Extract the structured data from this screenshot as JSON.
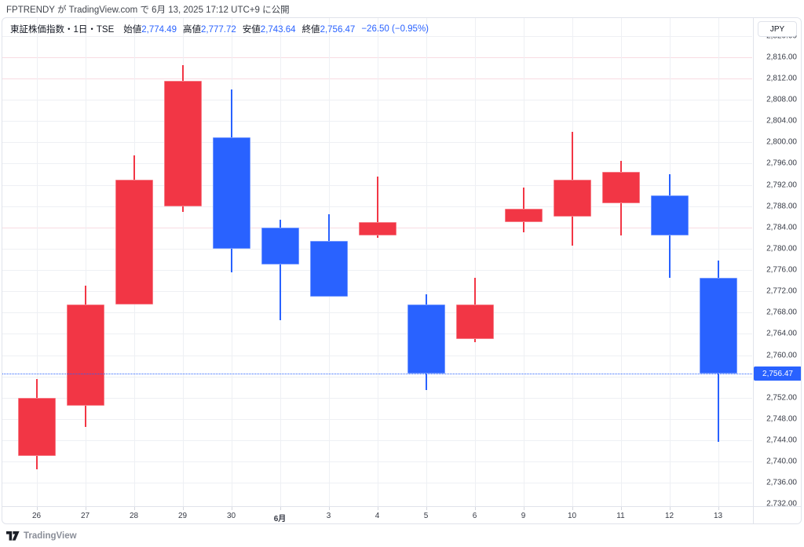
{
  "header": {
    "publish_line": "FPTRENDY が TradingView.com で 6月 13, 2025 17:12 UTC+9 に公開"
  },
  "legend": {
    "title": "東証株価指数・1日・TSE",
    "fields": [
      {
        "key": "open",
        "label": "始値",
        "value": "2,774.49"
      },
      {
        "key": "high",
        "label": "高値",
        "value": "2,777.72"
      },
      {
        "key": "low",
        "label": "安値",
        "value": "2,743.64"
      },
      {
        "key": "close",
        "label": "終値",
        "value": "2,756.47"
      }
    ],
    "change": "−26.50 (−0.95%)"
  },
  "axis": {
    "currency_button": "JPY"
  },
  "watermark": {
    "brand": "TradingView"
  },
  "chart_data": {
    "type": "candlestick",
    "symbol": "東証株価指数",
    "interval": "1日",
    "exchange": "TSE",
    "currency": "JPY",
    "colors": {
      "up": "#F23645",
      "down": "#2962FF",
      "price_line": "#2962FF",
      "grid": "#eef0f4",
      "grid_highlight": "#f8dce2"
    },
    "y_axis": {
      "min": 2732,
      "max": 2820,
      "tick_step": 4,
      "ticks": [
        {
          "value": 2820,
          "label": "2,820.00"
        },
        {
          "value": 2816,
          "label": "2,816.00"
        },
        {
          "value": 2812,
          "label": "2,812.00"
        },
        {
          "value": 2808,
          "label": "2,808.00"
        },
        {
          "value": 2804,
          "label": "2,804.00"
        },
        {
          "value": 2800,
          "label": "2,800.00"
        },
        {
          "value": 2796,
          "label": "2,796.00"
        },
        {
          "value": 2792,
          "label": "2,792.00"
        },
        {
          "value": 2788,
          "label": "2,788.00"
        },
        {
          "value": 2784,
          "label": "2,784.00"
        },
        {
          "value": 2780,
          "label": "2,780.00"
        },
        {
          "value": 2776,
          "label": "2,776.00"
        },
        {
          "value": 2772,
          "label": "2,772.00"
        },
        {
          "value": 2768,
          "label": "2,768.00"
        },
        {
          "value": 2764,
          "label": "2,764.00"
        },
        {
          "value": 2760,
          "label": "2,760.00"
        },
        {
          "value": 2752,
          "label": "2,752.00"
        },
        {
          "value": 2748,
          "label": "2,748.00"
        },
        {
          "value": 2744,
          "label": "2,744.00"
        },
        {
          "value": 2740,
          "label": "2,740.00"
        },
        {
          "value": 2736,
          "label": "2,736.00"
        },
        {
          "value": 2732,
          "label": "2,732.00"
        }
      ],
      "highlight_gridlines": [
        2816,
        2812,
        2784
      ]
    },
    "candles": [
      {
        "label": "26",
        "open": 2741.0,
        "high": 2755.5,
        "low": 2738.5,
        "close": 2752.0,
        "direction": "up"
      },
      {
        "label": "27",
        "open": 2750.5,
        "high": 2773.0,
        "low": 2746.5,
        "close": 2769.5,
        "direction": "up"
      },
      {
        "label": "28",
        "open": 2769.5,
        "high": 2797.5,
        "low": 2769.5,
        "close": 2793.0,
        "direction": "up"
      },
      {
        "label": "29",
        "open": 2788.0,
        "high": 2814.5,
        "low": 2787.0,
        "close": 2811.5,
        "direction": "up"
      },
      {
        "label": "30",
        "open": 2801.0,
        "high": 2810.0,
        "low": 2775.5,
        "close": 2780.0,
        "direction": "down"
      },
      {
        "label": "6月",
        "month": true,
        "open": 2784.0,
        "high": 2785.5,
        "low": 2766.5,
        "close": 2777.0,
        "direction": "down"
      },
      {
        "label": "3",
        "open": 2781.5,
        "high": 2786.5,
        "low": 2771.0,
        "close": 2771.0,
        "direction": "down"
      },
      {
        "label": "4",
        "open": 2782.5,
        "high": 2793.5,
        "low": 2782.0,
        "close": 2785.0,
        "direction": "up"
      },
      {
        "label": "5",
        "open": 2769.5,
        "high": 2771.5,
        "low": 2753.5,
        "close": 2756.5,
        "direction": "down"
      },
      {
        "label": "6",
        "open": 2763.0,
        "high": 2774.5,
        "low": 2762.5,
        "close": 2769.5,
        "direction": "up"
      },
      {
        "label": "9",
        "open": 2785.0,
        "high": 2791.5,
        "low": 2783.0,
        "close": 2787.5,
        "direction": "up"
      },
      {
        "label": "10",
        "open": 2786.0,
        "high": 2802.0,
        "low": 2780.5,
        "close": 2793.0,
        "direction": "up"
      },
      {
        "label": "11",
        "open": 2788.5,
        "high": 2796.5,
        "low": 2782.5,
        "close": 2794.5,
        "direction": "up"
      },
      {
        "label": "12",
        "open": 2790.0,
        "high": 2794.0,
        "low": 2774.5,
        "close": 2782.5,
        "direction": "down"
      },
      {
        "label": "13",
        "open": 2774.49,
        "high": 2777.72,
        "low": 2743.64,
        "close": 2756.47,
        "direction": "down"
      }
    ],
    "last_price": 2756.47,
    "last_price_label": "2,756.47"
  }
}
